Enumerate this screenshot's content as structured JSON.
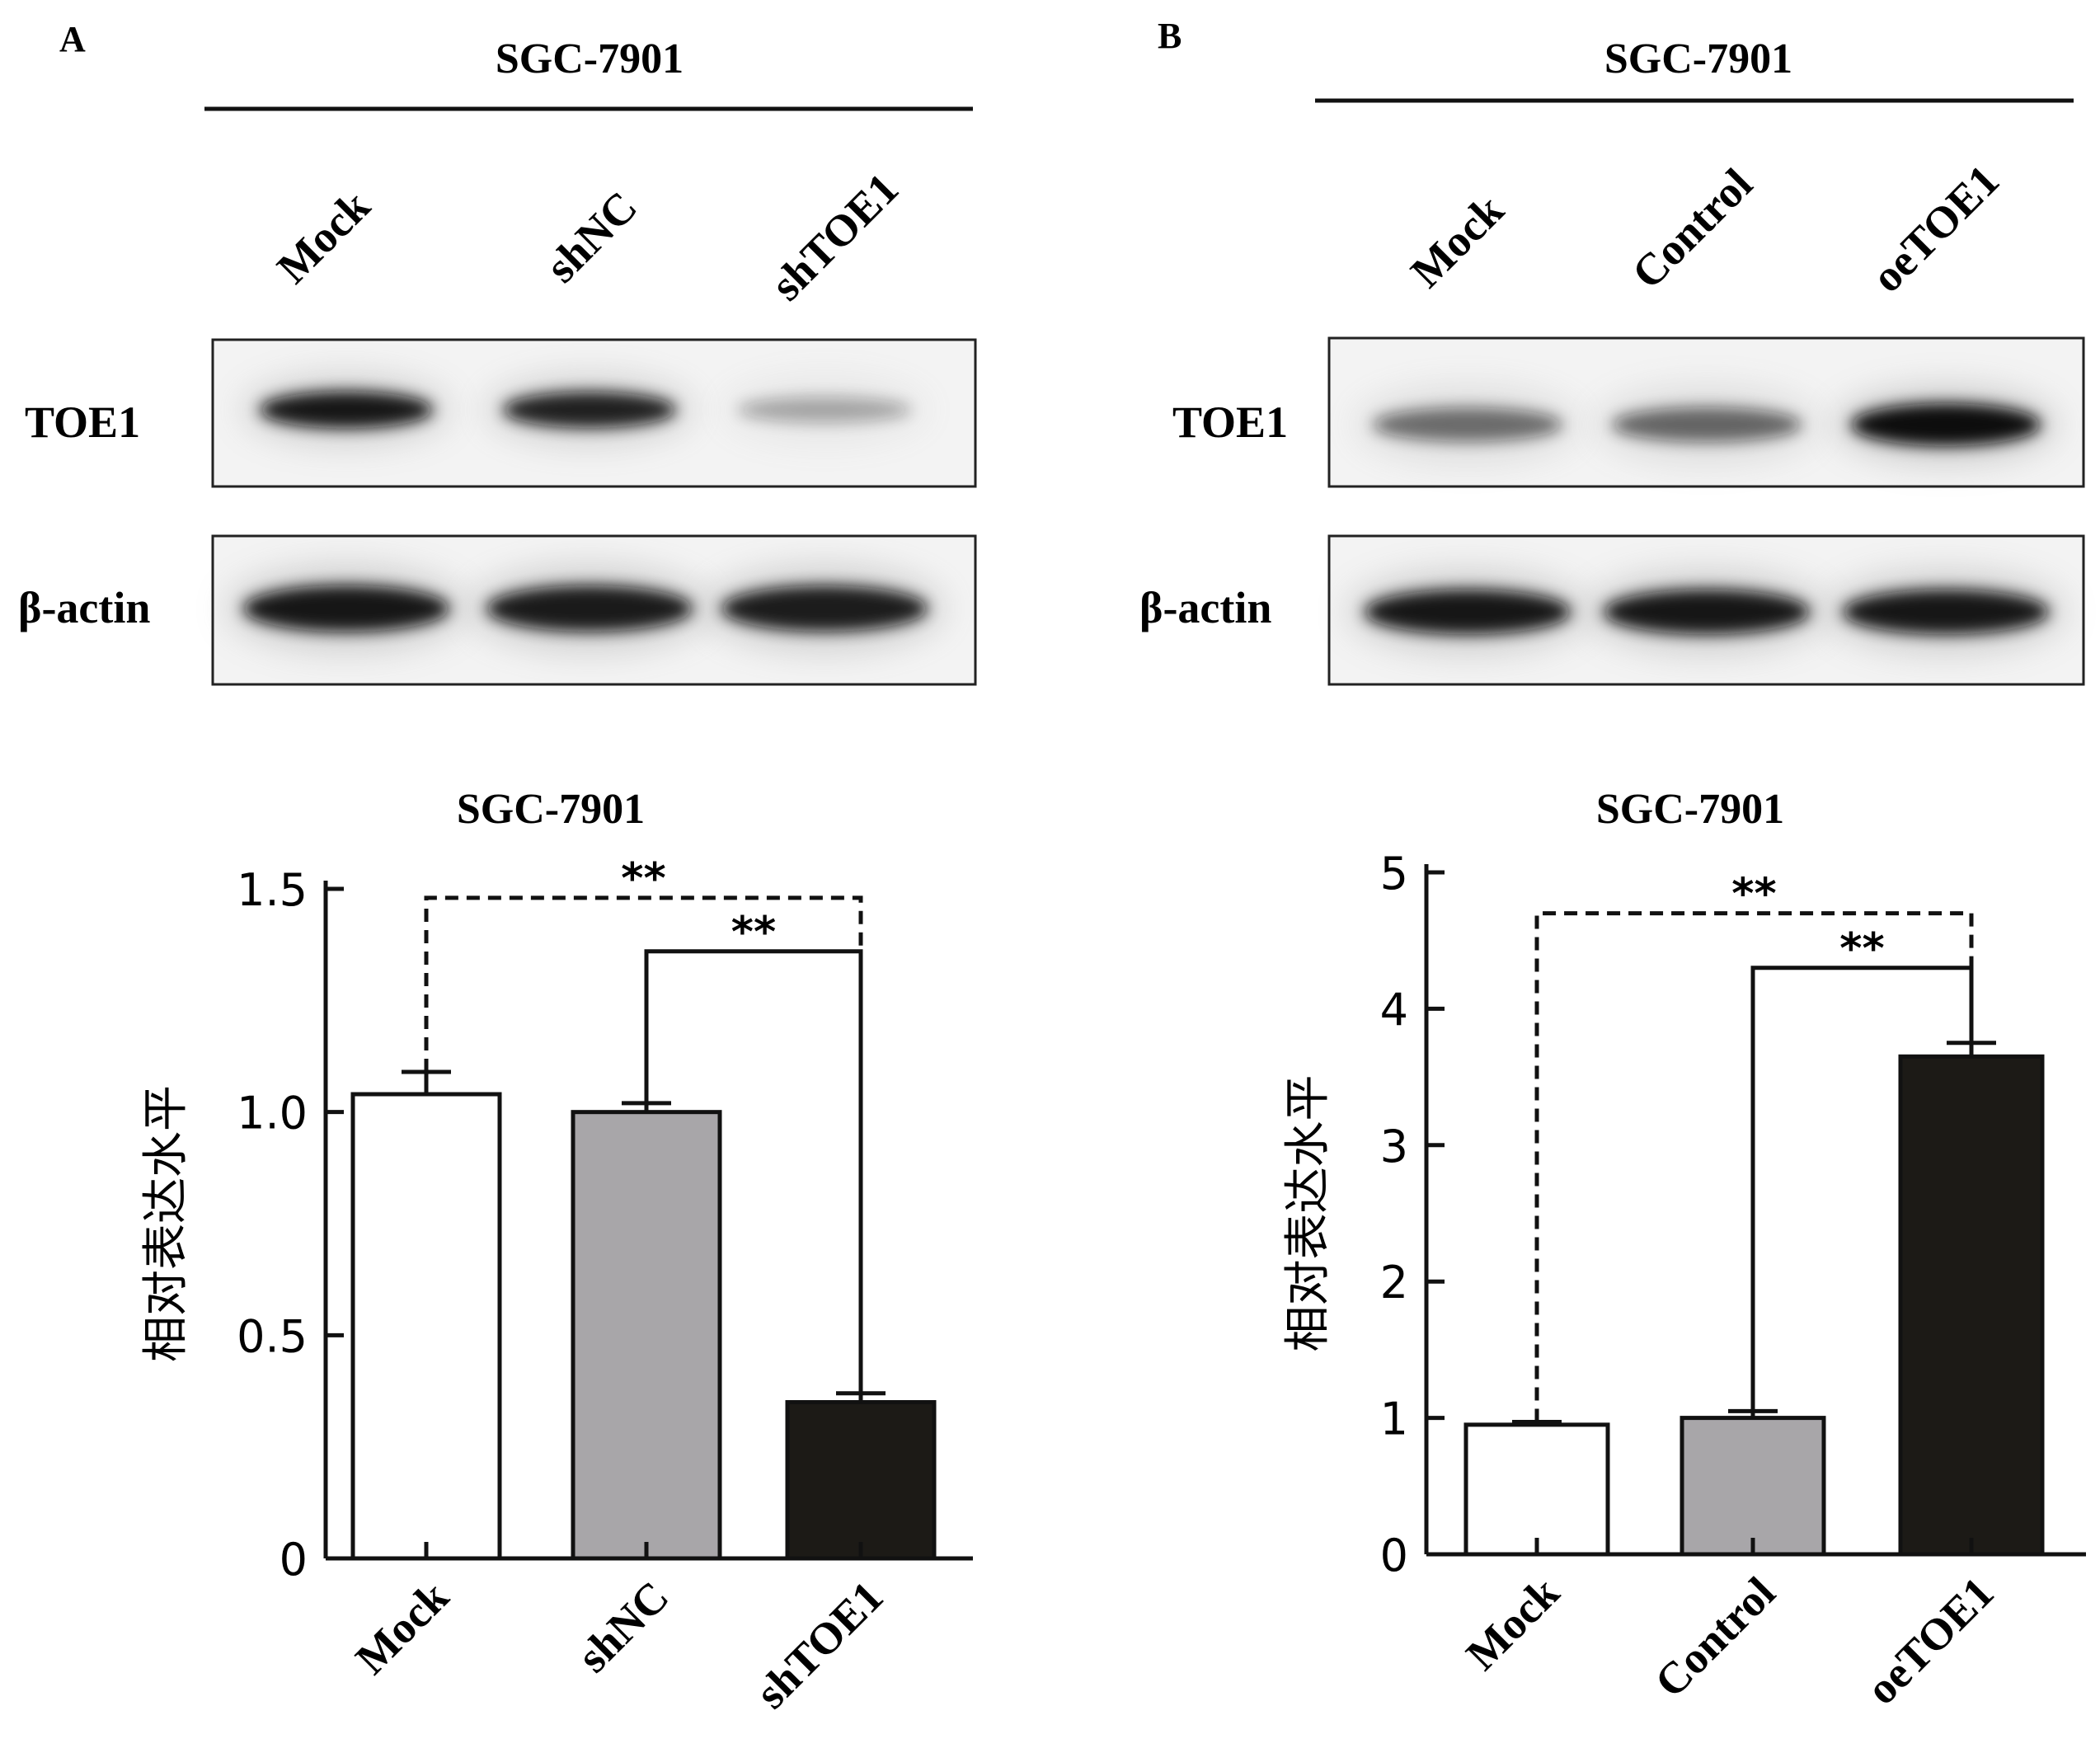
{
  "panels": [
    {
      "letter": "A",
      "cell_line": "SGC-7901",
      "lanes": [
        "Mock",
        "shNC",
        "shTOE1"
      ],
      "blot_rows": [
        "TOE1",
        "β-actin"
      ],
      "toe1_band_intensity": [
        0.95,
        0.9,
        0.3
      ],
      "actin_band_intensity": [
        0.95,
        0.93,
        0.92
      ]
    },
    {
      "letter": "B",
      "cell_line": "SGC-7901",
      "lanes": [
        "Mock",
        "Control",
        "oeTOE1"
      ],
      "blot_rows": [
        "TOE1",
        "β-actin"
      ],
      "toe1_band_intensity": [
        0.55,
        0.58,
        1.0
      ],
      "actin_band_intensity": [
        0.95,
        0.95,
        0.95
      ]
    }
  ],
  "chart_data": [
    {
      "type": "bar",
      "title": "SGC-7901",
      "ylabel": "相对表达水平",
      "categories": [
        "Mock",
        "shNC",
        "shTOE1"
      ],
      "values": [
        1.04,
        1.0,
        0.35
      ],
      "errors": [
        0.05,
        0.02,
        0.02
      ],
      "colors": [
        "#ffffff",
        "#a8a6a9",
        "#1c1a16"
      ],
      "ylim": [
        0,
        1.5
      ],
      "yticks": [
        0,
        0.5,
        1.0,
        1.5
      ],
      "ytick_labels": [
        "0",
        "0.5",
        "1.0",
        "1.5"
      ],
      "significance": [
        {
          "from": 0,
          "to": 2,
          "label": "**",
          "style": "dashed",
          "level": 1.48
        },
        {
          "from": 1,
          "to": 2,
          "label": "**",
          "style": "solid",
          "level": 1.36
        }
      ]
    },
    {
      "type": "bar",
      "title": "SGC-7901",
      "ylabel": "相对表达水平",
      "categories": [
        "Mock",
        "Control",
        "oeTOE1"
      ],
      "values": [
        0.95,
        1.0,
        3.65
      ],
      "errors": [
        0.02,
        0.05,
        0.1
      ],
      "colors": [
        "#ffffff",
        "#a8a6a9",
        "#1c1a16"
      ],
      "ylim": [
        0,
        5
      ],
      "yticks": [
        0,
        1,
        2,
        3,
        4,
        5
      ],
      "ytick_labels": [
        "0",
        "1",
        "2",
        "3",
        "4",
        "5"
      ],
      "significance": [
        {
          "from": 0,
          "to": 2,
          "label": "**",
          "style": "dashed",
          "level": 4.7
        },
        {
          "from": 1,
          "to": 2,
          "label": "**",
          "style": "solid",
          "level": 4.3
        }
      ]
    }
  ]
}
